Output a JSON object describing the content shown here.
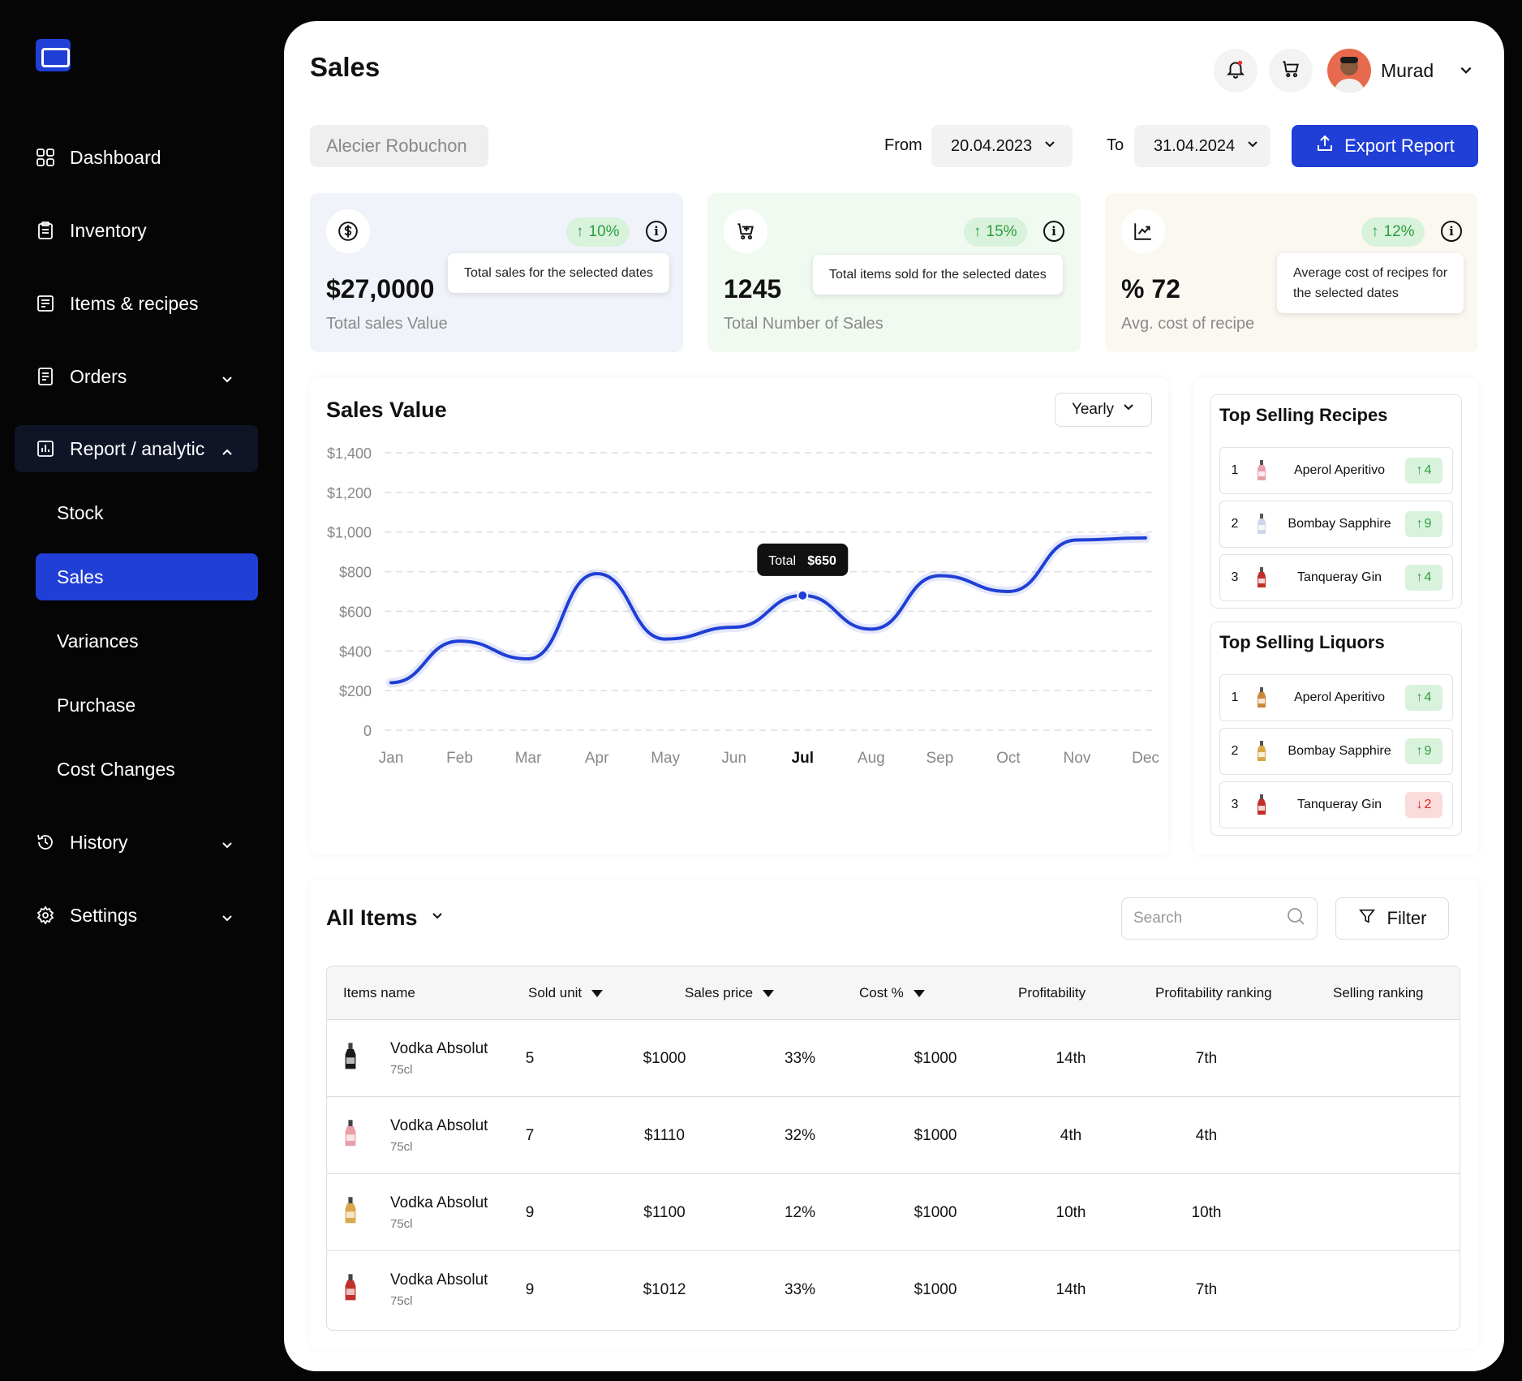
{
  "sidebar": {
    "nav": [
      {
        "label": "Dashboard",
        "icon": "grid-icon"
      },
      {
        "label": "Inventory",
        "icon": "clipboard-icon"
      },
      {
        "label": "Items & recipes",
        "icon": "receipt-icon"
      },
      {
        "label": "Orders",
        "icon": "document-icon"
      },
      {
        "label": "Report / analytic",
        "icon": "bar-chart-icon"
      },
      {
        "label": "History",
        "icon": "history-icon"
      },
      {
        "label": "Settings",
        "icon": "gear-icon"
      }
    ],
    "subnav": [
      "Stock",
      "Sales",
      "Variances",
      "Purchase",
      "Cost Changes"
    ]
  },
  "header": {
    "title": "Sales",
    "user": "Murad"
  },
  "filters": {
    "restaurant": "Alecier Robuchon",
    "from_label": "From",
    "from_date": "20.04.2023",
    "to_label": "To",
    "to_date": "31.04.2024",
    "export_label": "Export Report"
  },
  "kpis": [
    {
      "value": "$27,0000",
      "caption": "Total sales Value",
      "change": "10%",
      "tooltip": "Total sales for the selected dates",
      "bg": "#f1f3fb"
    },
    {
      "value": "1245",
      "caption": "Total Number of Sales",
      "change": "15%",
      "tooltip": "Total items sold for the selected dates",
      "bg": "#f1faf1"
    },
    {
      "value": "% 72",
      "caption": "Avg. cost of recipe",
      "change": "12%",
      "tooltip_line1": "Average cost of recipes for",
      "tooltip_line2": "the selected dates",
      "bg": "#fbf8f2"
    }
  ],
  "chart": {
    "title": "Sales Value",
    "period": "Yearly",
    "tooltip_label": "Total",
    "tooltip_value": "$650"
  },
  "chart_data": {
    "type": "line",
    "categories": [
      "Jan",
      "Feb",
      "Mar",
      "Apr",
      "May",
      "Jun",
      "Jul",
      "Aug",
      "Sep",
      "Oct",
      "Nov",
      "Dec"
    ],
    "values": [
      240,
      450,
      360,
      790,
      460,
      520,
      680,
      510,
      780,
      700,
      960,
      970
    ],
    "ylim": [
      0,
      1400
    ],
    "yticks": [
      "0",
      "$200",
      "$400",
      "$600",
      "$800",
      "$1,000",
      "$1,200",
      "$1,400"
    ],
    "highlight": "Jul",
    "line_color": "#1f3fd6",
    "grid": true
  },
  "top_recipes": {
    "title": "Top Selling Recipes",
    "items": [
      {
        "rank": "1",
        "name": "Aperol Aperitivo",
        "change": "4",
        "dir": "up"
      },
      {
        "rank": "2",
        "name": "Bombay Sapphire",
        "change": "9",
        "dir": "up"
      },
      {
        "rank": "3",
        "name": "Tanqueray Gin",
        "change": "4",
        "dir": "up"
      }
    ]
  },
  "top_liquors": {
    "title": "Top Selling Liquors",
    "items": [
      {
        "rank": "1",
        "name": "Aperol Aperitivo",
        "change": "4",
        "dir": "up"
      },
      {
        "rank": "2",
        "name": "Bombay Sapphire",
        "change": "9",
        "dir": "up"
      },
      {
        "rank": "3",
        "name": "Tanqueray Gin",
        "change": "2",
        "dir": "down"
      }
    ]
  },
  "items": {
    "title": "All Items",
    "search_placeholder": "Search",
    "filter_label": "Filter",
    "columns": [
      "Items name",
      "Sold unit",
      "Sales price",
      "Cost %",
      "Profitability",
      "Profitability ranking",
      "Selling ranking"
    ],
    "rows": [
      {
        "name": "Vodka Absolut",
        "size": "75cl",
        "sold": "5",
        "price": "$1000",
        "cost": "33%",
        "profit": "$1000",
        "prank": "14th",
        "srank": "7th",
        "bottle": "#1a1a1a"
      },
      {
        "name": "Vodka Absolut",
        "size": "75cl",
        "sold": "7",
        "price": "$1110",
        "cost": "32%",
        "profit": "$1000",
        "prank": "4th",
        "srank": "4th",
        "bottle": "#e8a0a8"
      },
      {
        "name": "Vodka Absolut",
        "size": "75cl",
        "sold": "9",
        "price": "$1100",
        "cost": "12%",
        "profit": "$1000",
        "prank": "10th",
        "srank": "10th",
        "bottle": "#d9a84a"
      },
      {
        "name": "Vodka Absolut",
        "size": "75cl",
        "sold": "9",
        "price": "$1012",
        "cost": "33%",
        "profit": "$1000",
        "prank": "14th",
        "srank": "7th",
        "bottle": "#c0302a"
      }
    ]
  }
}
